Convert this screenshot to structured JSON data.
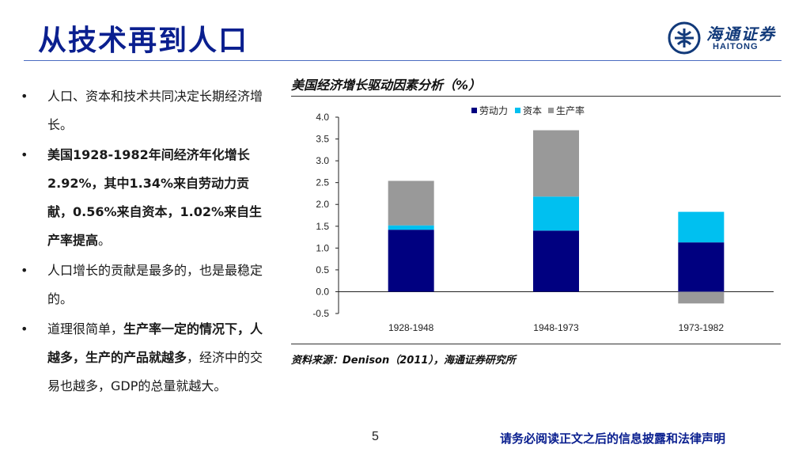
{
  "slide": {
    "title": "从技术再到人口",
    "page_number": "5",
    "disclaimer": "请务必阅读正文之后的信息披露和法律声明"
  },
  "logo": {
    "cn": "海通证券",
    "en": "HAITONG"
  },
  "bullets": [
    {
      "segments": [
        {
          "text": "人口、资本和技术共同决定长期经济增长。",
          "bold": false
        }
      ]
    },
    {
      "segments": [
        {
          "text": "美国1928-1982年间经济年化增长2.92%，其中1.34%来自劳动力贡献，0.56%来自资本，1.02%来自生产率提高",
          "bold": true
        },
        {
          "text": "。",
          "bold": false
        }
      ]
    },
    {
      "segments": [
        {
          "text": "人口增长的贡献是最多的，也是最稳定的。",
          "bold": false
        }
      ]
    },
    {
      "segments": [
        {
          "text": "道理很简单，",
          "bold": false
        },
        {
          "text": "生产率一定的情况下，人越多，生产的产品就越多",
          "bold": true
        },
        {
          "text": "，经济中的交易也越多，GDP的总量就越大。",
          "bold": false
        }
      ]
    }
  ],
  "chart": {
    "title": "美国经济增长驱动因素分析（%）",
    "source": "资料来源：Denison（2011），海通证券研究所"
  },
  "chart_data": {
    "type": "bar",
    "stacked": true,
    "categories": [
      "1928-1948",
      "1948-1973",
      "1973-1982"
    ],
    "series": [
      {
        "name": "劳动力",
        "color": "#000080",
        "values": [
          1.42,
          1.4,
          1.13
        ]
      },
      {
        "name": "资本",
        "color": "#00c0f0",
        "values": [
          0.1,
          0.78,
          0.7
        ]
      },
      {
        "name": "生产率",
        "color": "#999999",
        "values": [
          1.02,
          1.52,
          -0.27
        ]
      }
    ],
    "ylim": [
      -0.5,
      4.0
    ],
    "yticks": [
      "4.0",
      "3.5",
      "3.0",
      "2.5",
      "2.0",
      "1.5",
      "1.0",
      "0.5",
      "0.0",
      "-0.5"
    ],
    "legend_position": "top-right",
    "grid": false
  }
}
